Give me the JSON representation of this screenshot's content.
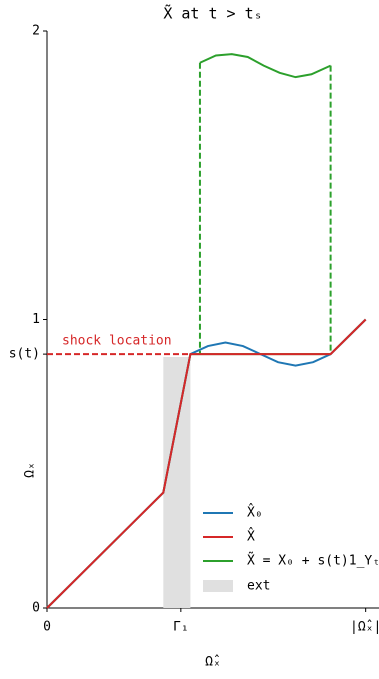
{
  "chart_data": {
    "type": "line",
    "title": "X̃ at t > tₛ",
    "x_label": "Ω̂ₓ",
    "y_label": "Ωₓ",
    "xlim": [
      0,
      1.045
    ],
    "ylim": [
      0,
      2
    ],
    "xticks": [
      0,
      {
        "value": 0.42,
        "label": "Γ₁"
      },
      {
        "value": 1,
        "label": "|Ω̂ₓ|"
      }
    ],
    "yticks": [
      0,
      {
        "value": 0.88,
        "label": "s(t)"
      },
      1,
      2
    ],
    "shock_level": 0.88,
    "shock_end": 0.45,
    "shock_color": "#d62728",
    "shock_label": "shock location",
    "ext": {
      "name": "ext",
      "color": "#e0e0e0",
      "x": [
        0.365,
        0.45
      ],
      "top": 0.87
    },
    "legend": "lower right",
    "series": [
      {
        "name": "X̂₀",
        "color": "#1f77b4",
        "x": [
          0,
          0.365,
          0.45,
          0.505,
          0.56,
          0.615,
          0.67,
          0.725,
          0.78,
          0.835,
          0.89,
          1
        ],
        "values": [
          0,
          0.4,
          0.88,
          0.908,
          0.92,
          0.908,
          0.88,
          0.852,
          0.84,
          0.852,
          0.88,
          1
        ]
      },
      {
        "name": "X̂",
        "color": "#d62728",
        "x": [
          0,
          0.365,
          0.45,
          0.89,
          1
        ],
        "values": [
          0,
          0.4,
          0.88,
          0.88,
          1
        ]
      },
      {
        "name": "X̃ = X₀ + s(t)1_Υₜ",
        "color": "#2ca02c",
        "x": [
          0,
          0.365,
          0.45,
          0.89,
          1,
          null,
          0.48,
          0.53,
          0.58,
          0.63,
          0.68,
          0.73,
          0.78,
          0.83,
          0.89
        ],
        "values": [
          0,
          0.4,
          0.88,
          0.88,
          1,
          null,
          1.89,
          1.915,
          1.92,
          1.91,
          1.88,
          1.855,
          1.84,
          1.85,
          1.88
        ]
      }
    ]
  }
}
